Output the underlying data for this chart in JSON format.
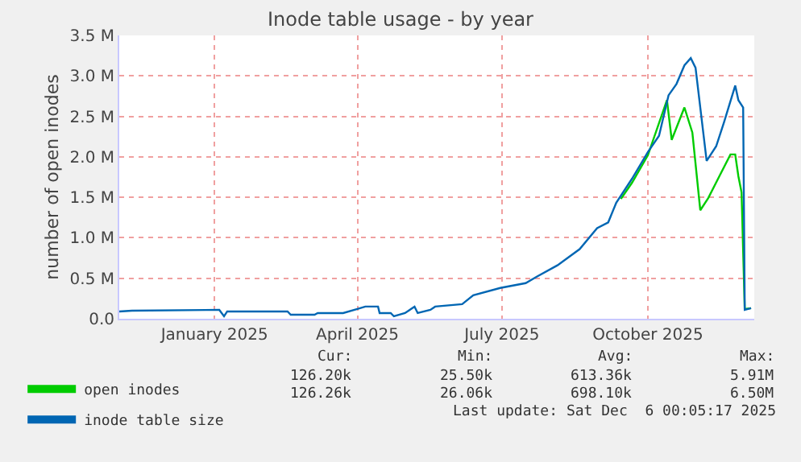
{
  "chart_data": {
    "type": "line",
    "title": "Inode table usage - by year",
    "ylabel": "number of open inodes",
    "xlim": [
      "2024-11-02",
      "2025-12-07"
    ],
    "xticks": [
      {
        "value": "2025-01-01",
        "label": "January 2025"
      },
      {
        "value": "2025-04-01",
        "label": "April 2025"
      },
      {
        "value": "2025-07-01",
        "label": "July 2025"
      },
      {
        "value": "2025-10-01",
        "label": "October 2025"
      }
    ],
    "ylim": [
      0,
      3500000
    ],
    "yticks": [
      {
        "value": 0,
        "label": "0.0"
      },
      {
        "value": 500000,
        "label": "0.5 M"
      },
      {
        "value": 1000000,
        "label": "1.0 M"
      },
      {
        "value": 1500000,
        "label": "1.5 M"
      },
      {
        "value": 2000000,
        "label": "2.0 M"
      },
      {
        "value": 2500000,
        "label": "2.5 M"
      },
      {
        "value": 3000000,
        "label": "3.0 M"
      },
      {
        "value": 3500000,
        "label": "3.5 M"
      }
    ],
    "grid": true,
    "legend": "bottom",
    "marker": "none",
    "line_style": "solid",
    "series": [
      {
        "name": "open inodes",
        "color": "#00cc00",
        "x": [
          "2025-09-14",
          "2025-09-21",
          "2025-10-01",
          "2025-10-13",
          "2025-10-16",
          "2025-10-24",
          "2025-10-29",
          "2025-11-03",
          "2025-11-08",
          "2025-11-15",
          "2025-11-22",
          "2025-11-25",
          "2025-11-27",
          "2025-11-29",
          "2025-12-01",
          "2025-12-05"
        ],
        "values": [
          1480000,
          1680000,
          2020000,
          2700000,
          2210000,
          2610000,
          2300000,
          1340000,
          1490000,
          1760000,
          2030000,
          2030000,
          1760000,
          1560000,
          120000,
          130000
        ]
      },
      {
        "name": "inode table size",
        "color": "#0066b3",
        "x": [
          "2024-11-02",
          "2024-11-10",
          "2025-01-04",
          "2025-01-07",
          "2025-01-09",
          "2025-02-16",
          "2025-02-18",
          "2025-03-05",
          "2025-03-07",
          "2025-03-23",
          "2025-04-01",
          "2025-04-06",
          "2025-04-14",
          "2025-04-15",
          "2025-04-22",
          "2025-04-24",
          "2025-05-01",
          "2025-05-07",
          "2025-05-09",
          "2025-05-17",
          "2025-05-20",
          "2025-06-06",
          "2025-06-13",
          "2025-06-30",
          "2025-07-16",
          "2025-07-23",
          "2025-08-05",
          "2025-08-19",
          "2025-08-30",
          "2025-09-06",
          "2025-09-11",
          "2025-09-21",
          "2025-10-01",
          "2025-10-08",
          "2025-10-14",
          "2025-10-19",
          "2025-10-24",
          "2025-10-28",
          "2025-10-31",
          "2025-11-07",
          "2025-11-13",
          "2025-11-18",
          "2025-11-25",
          "2025-11-27",
          "2025-11-30",
          "2025-12-01",
          "2025-12-05"
        ],
        "values": [
          90000,
          100000,
          110000,
          30000,
          90000,
          90000,
          50000,
          50000,
          70000,
          70000,
          120000,
          150000,
          150000,
          70000,
          70000,
          30000,
          70000,
          150000,
          70000,
          110000,
          150000,
          180000,
          290000,
          380000,
          440000,
          520000,
          660000,
          860000,
          1120000,
          1190000,
          1430000,
          1730000,
          2060000,
          2260000,
          2760000,
          2900000,
          3130000,
          3220000,
          3100000,
          1950000,
          2130000,
          2430000,
          2880000,
          2700000,
          2610000,
          110000,
          130000
        ]
      }
    ],
    "annotations": [
      "Cur:",
      "Min:",
      "Avg:",
      "Max:",
      "126.20k",
      "25.50k",
      "613.36k",
      "5.91M",
      "126.26k",
      "26.06k",
      "698.10k",
      "6.50M",
      "Last update: Sat Dec  6 00:05:17 2025"
    ]
  }
}
